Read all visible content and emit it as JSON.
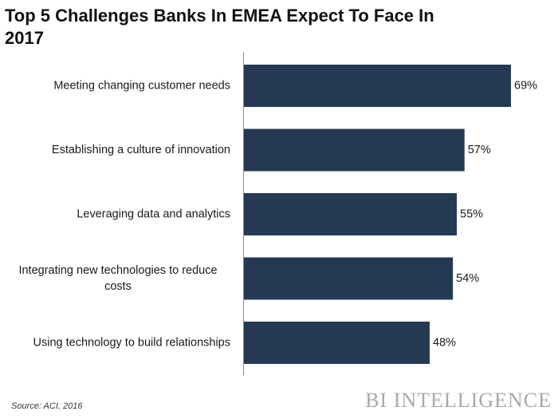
{
  "chart_data": {
    "type": "bar",
    "orientation": "horizontal",
    "title": "Top 5 Challenges Banks In EMEA Expect To Face In 2017",
    "categories": [
      "Meeting changing customer needs",
      "Establishing a culture of innovation",
      "Leveraging data and analytics",
      "Integrating new technologies to reduce costs",
      "Using technology to build relationships"
    ],
    "values": [
      69,
      57,
      55,
      54,
      48
    ],
    "value_labels": [
      "69%",
      "57%",
      "55%",
      "54%",
      "48%"
    ],
    "xlabel": "",
    "ylabel": "",
    "xlim": [
      0,
      69
    ],
    "grid": false,
    "bar_color": "#253a52"
  },
  "source_text": "Source: ACI, 2016",
  "logo_text": "BI INTELLIGENCE"
}
